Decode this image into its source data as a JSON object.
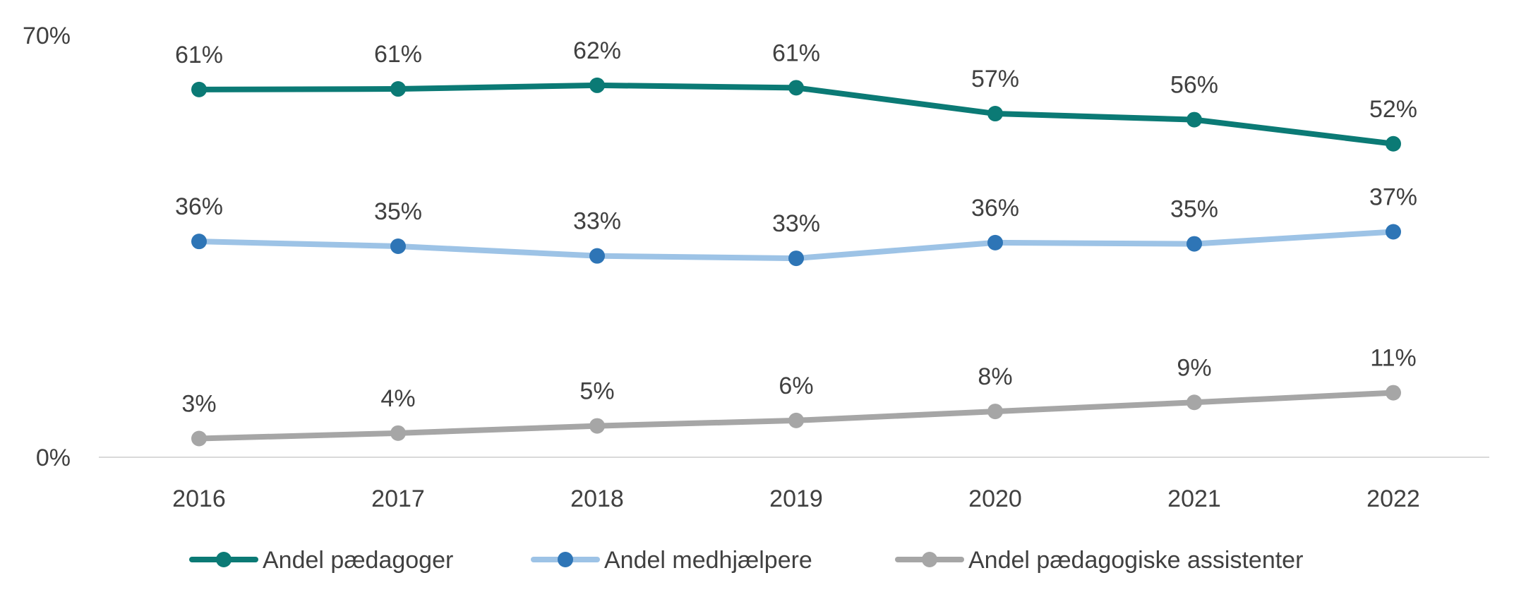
{
  "chart_data": {
    "type": "line",
    "title": "",
    "xlabel": "",
    "ylabel": "",
    "x": [
      "2016",
      "2017",
      "2018",
      "2019",
      "2020",
      "2021",
      "2022"
    ],
    "ylim": [
      0,
      70
    ],
    "y_ticks": [
      {
        "value": 0,
        "label": "0%"
      },
      {
        "value": 70,
        "label": "70%"
      }
    ],
    "grid": false,
    "legend_position": "bottom",
    "series": [
      {
        "name": "Andel pædagoger",
        "color": "#0B7A75",
        "marker_color": "#0B7A75",
        "values": [
          61,
          61.1,
          61.7,
          61.3,
          57,
          56,
          52
        ],
        "labels": [
          "61%",
          "61%",
          "62%",
          "61%",
          "57%",
          "56%",
          "52%"
        ]
      },
      {
        "name": "Andel medhjælpere",
        "color": "#9DC3E6",
        "marker_color": "#2E75B6",
        "values": [
          35.8,
          35,
          33.4,
          33,
          35.6,
          35.4,
          37.4
        ],
        "labels": [
          "36%",
          "35%",
          "33%",
          "33%",
          "36%",
          "35%",
          "37%"
        ]
      },
      {
        "name": "Andel pædagogiske assistenter",
        "color": "#A6A6A6",
        "marker_color": "#A6A6A6",
        "values": [
          3.1,
          4,
          5.2,
          6.1,
          7.6,
          9.1,
          10.7
        ],
        "labels": [
          "3%",
          "4%",
          "5%",
          "6%",
          "8%",
          "9%",
          "11%"
        ]
      }
    ]
  }
}
